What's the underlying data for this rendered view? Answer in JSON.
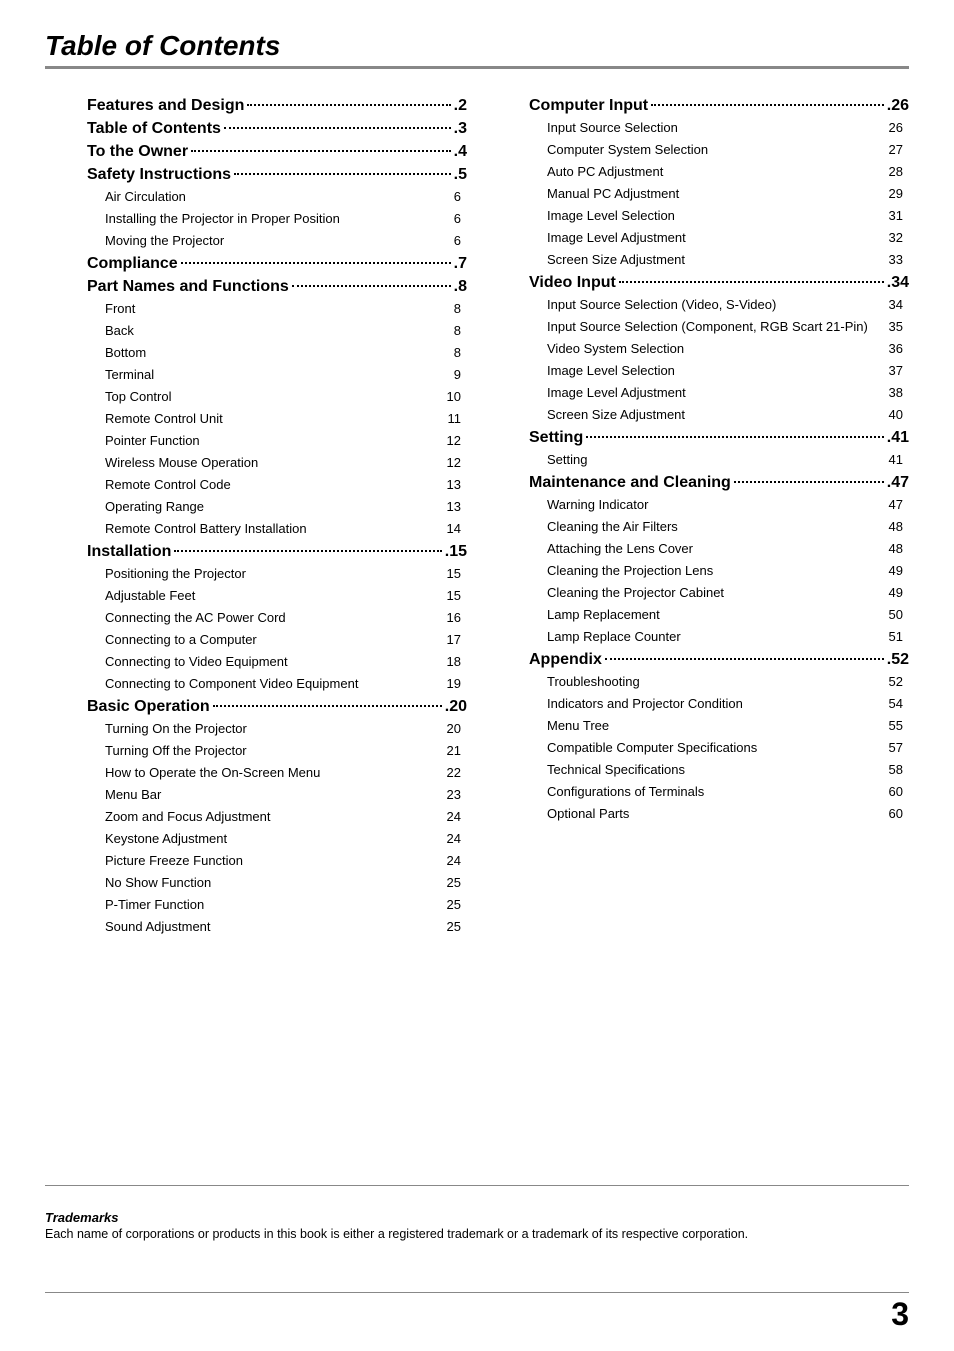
{
  "title": "Table of Contents",
  "page_number": "3",
  "trademarks": {
    "heading": "Trademarks",
    "text": "Each name of corporations or products in this book is either a registered trademark or a trademark of its respective corporation."
  },
  "col1": [
    {
      "type": "section",
      "label": "Features and Design",
      "page": "2"
    },
    {
      "type": "section",
      "label": "Table of Contents",
      "page": "3"
    },
    {
      "type": "section",
      "label": "To the Owner",
      "page": "4"
    },
    {
      "type": "section",
      "label": "Safety Instructions",
      "page": "5"
    },
    {
      "type": "item",
      "label": "Air Circulation",
      "page": "6"
    },
    {
      "type": "item",
      "label": "Installing the Projector in Proper Position",
      "page": "6"
    },
    {
      "type": "item",
      "label": "Moving the Projector",
      "page": "6"
    },
    {
      "type": "section",
      "label": "Compliance",
      "page": "7"
    },
    {
      "type": "section",
      "label": "Part Names and Functions",
      "page": "8"
    },
    {
      "type": "item",
      "label": "Front",
      "page": "8"
    },
    {
      "type": "item",
      "label": "Back",
      "page": "8"
    },
    {
      "type": "item",
      "label": "Bottom",
      "page": "8"
    },
    {
      "type": "item",
      "label": "Terminal",
      "page": "9"
    },
    {
      "type": "item",
      "label": "Top Control",
      "page": "10"
    },
    {
      "type": "item",
      "label": "Remote Control Unit",
      "page": "11"
    },
    {
      "type": "item",
      "label": "Pointer Function",
      "page": "12"
    },
    {
      "type": "item",
      "label": "Wireless Mouse Operation",
      "page": "12"
    },
    {
      "type": "item",
      "label": "Remote Control Code",
      "page": "13"
    },
    {
      "type": "item",
      "label": "Operating Range",
      "page": "13"
    },
    {
      "type": "item",
      "label": "Remote Control Battery Installation",
      "page": "14"
    },
    {
      "type": "section",
      "label": "Installation",
      "page": "15"
    },
    {
      "type": "item",
      "label": "Positioning the Projector",
      "page": "15"
    },
    {
      "type": "item",
      "label": "Adjustable Feet",
      "page": "15"
    },
    {
      "type": "item",
      "label": "Connecting the AC Power Cord",
      "page": "16"
    },
    {
      "type": "item",
      "label": "Connecting to a Computer",
      "page": "17"
    },
    {
      "type": "item",
      "label": "Connecting to Video Equipment",
      "page": "18"
    },
    {
      "type": "item",
      "label": "Connecting to Component Video Equipment",
      "page": "19"
    },
    {
      "type": "section",
      "label": "Basic Operation",
      "page": "20"
    },
    {
      "type": "item",
      "label": "Turning On the Projector",
      "page": "20"
    },
    {
      "type": "item",
      "label": "Turning Off the Projector",
      "page": "21"
    },
    {
      "type": "item",
      "label": "How to Operate the On-Screen Menu",
      "page": "22"
    },
    {
      "type": "item",
      "label": "Menu Bar",
      "page": "23"
    },
    {
      "type": "item",
      "label": "Zoom and Focus Adjustment",
      "page": "24"
    },
    {
      "type": "item",
      "label": "Keystone Adjustment",
      "page": "24"
    },
    {
      "type": "item",
      "label": "Picture Freeze Function",
      "page": "24"
    },
    {
      "type": "item",
      "label": "No Show Function",
      "page": "25"
    },
    {
      "type": "item",
      "label": "P-Timer Function",
      "page": "25"
    },
    {
      "type": "item",
      "label": "Sound Adjustment",
      "page": "25"
    }
  ],
  "col2": [
    {
      "type": "section",
      "label": "Computer Input",
      "page": "26"
    },
    {
      "type": "item",
      "label": "Input Source Selection",
      "page": "26"
    },
    {
      "type": "item",
      "label": "Computer System Selection",
      "page": "27"
    },
    {
      "type": "item",
      "label": "Auto PC Adjustment",
      "page": "28"
    },
    {
      "type": "item",
      "label": "Manual PC Adjustment",
      "page": "29"
    },
    {
      "type": "item",
      "label": "Image Level Selection",
      "page": "31"
    },
    {
      "type": "item",
      "label": "Image Level Adjustment",
      "page": "32"
    },
    {
      "type": "item",
      "label": "Screen Size Adjustment",
      "page": "33"
    },
    {
      "type": "section",
      "label": "Video Input",
      "page": "34"
    },
    {
      "type": "item",
      "label": "Input Source Selection (Video, S-Video)",
      "page": "34"
    },
    {
      "type": "item",
      "label": "Input Source Selection (Component, RGB Scart 21-Pin)",
      "page": "35"
    },
    {
      "type": "item",
      "label": "Video System Selection",
      "page": "36"
    },
    {
      "type": "item",
      "label": "Image Level Selection",
      "page": "37"
    },
    {
      "type": "item",
      "label": "Image Level Adjustment",
      "page": "38"
    },
    {
      "type": "item",
      "label": "Screen Size Adjustment",
      "page": "40"
    },
    {
      "type": "section",
      "label": "Setting",
      "page": "41"
    },
    {
      "type": "item",
      "label": "Setting",
      "page": "41"
    },
    {
      "type": "section",
      "label": "Maintenance and Cleaning",
      "page": "47"
    },
    {
      "type": "item",
      "label": "Warning Indicator",
      "page": "47"
    },
    {
      "type": "item",
      "label": "Cleaning the Air Filters",
      "page": "48"
    },
    {
      "type": "item",
      "label": "Attaching the Lens Cover",
      "page": "48"
    },
    {
      "type": "item",
      "label": "Cleaning the Projection Lens",
      "page": "49"
    },
    {
      "type": "item",
      "label": "Cleaning the Projector Cabinet",
      "page": "49"
    },
    {
      "type": "item",
      "label": "Lamp Replacement",
      "page": "50"
    },
    {
      "type": "item",
      "label": "Lamp Replace Counter",
      "page": "51"
    },
    {
      "type": "section",
      "label": "Appendix",
      "page": "52"
    },
    {
      "type": "item",
      "label": "Troubleshooting",
      "page": "52"
    },
    {
      "type": "item",
      "label": "Indicators and Projector Condition",
      "page": "54"
    },
    {
      "type": "item",
      "label": "Menu Tree",
      "page": "55"
    },
    {
      "type": "item",
      "label": "Compatible Computer Specifications",
      "page": "57"
    },
    {
      "type": "item",
      "label": "Technical Specifications",
      "page": "58"
    },
    {
      "type": "item",
      "label": "Configurations of Terminals",
      "page": "60"
    },
    {
      "type": "item",
      "label": "Optional Parts",
      "page": "60"
    }
  ]
}
